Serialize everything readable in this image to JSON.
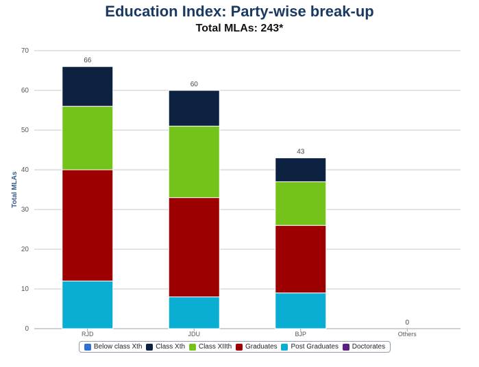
{
  "chart_data": {
    "type": "bar",
    "stacked": true,
    "title": "Education Index: Party-wise break-up",
    "subtitle": "Total MLAs: 243*",
    "xlabel": "",
    "ylabel": "Total MLAs",
    "ylim": [
      0,
      70
    ],
    "yticks": [
      0,
      10,
      20,
      30,
      40,
      50,
      60,
      70
    ],
    "grid": true,
    "categories": [
      "RJD",
      "JDU",
      "BJP",
      "Others"
    ],
    "totals": [
      66,
      60,
      43,
      0
    ],
    "series": [
      {
        "name": "Below class Xth",
        "color": "#2f6fd6",
        "values": [
          0,
          0,
          0,
          0
        ]
      },
      {
        "name": "Class Xth",
        "color": "#0d2240",
        "values": [
          10,
          9,
          6,
          0
        ]
      },
      {
        "name": "Class XIIth",
        "color": "#74c31a",
        "values": [
          16,
          18,
          11,
          0
        ]
      },
      {
        "name": "Graduates",
        "color": "#9c0000",
        "values": [
          28,
          25,
          17,
          0
        ]
      },
      {
        "name": "Post Graduates",
        "color": "#0aaed3",
        "values": [
          12,
          8,
          9,
          0
        ]
      },
      {
        "name": "Doctorates",
        "color": "#5a2280",
        "values": [
          0,
          0,
          0,
          0
        ]
      }
    ],
    "stack_order_bottom_to_top": [
      "Doctorates",
      "Post Graduates",
      "Graduates",
      "Class XIIth",
      "Class Xth",
      "Below class Xth"
    ],
    "legend_position": "bottom-center"
  }
}
